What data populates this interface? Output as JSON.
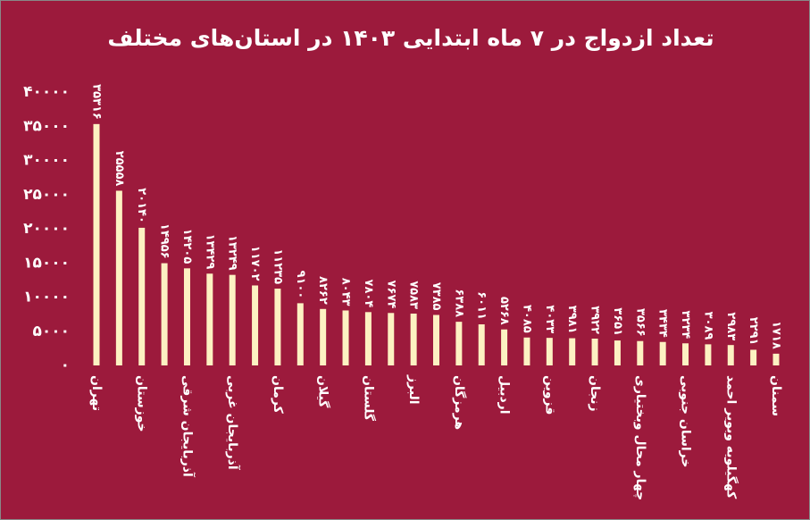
{
  "chart_data": {
    "type": "bar",
    "title": "تعداد ازدواج در ۷ ماه ابتدایی ۱۴۰۳ در استان‌های مختلف",
    "categories": [
      "تهران",
      null,
      "خوزستان",
      null,
      "آذربایجان شرقی",
      null,
      "آذربایجان غربی",
      null,
      "کرمان",
      null,
      "گیلان",
      null,
      "گلستان",
      null,
      "البرز",
      null,
      "هرمزگان",
      null,
      "اردبیل",
      null,
      "قزوین",
      null,
      "زنجان",
      null,
      "چهار محال وبختیاری",
      null,
      "خراسان جنوبی",
      null,
      "کهگیلویه وبویر احمد",
      null,
      "سمنان"
    ],
    "values": [
      35316,
      25558,
      20140,
      14956,
      14205,
      13429,
      13249,
      11702,
      11235,
      9100,
      8262,
      8043,
      7804,
      7674,
      7583,
      7385,
      6388,
      6011,
      5268,
      4085,
      4033,
      3981,
      3922,
      3651,
      3566,
      3434,
      3234,
      3089,
      2983,
      2291,
      1718
    ],
    "value_labels": [
      "۳۵۳۱۶",
      "۲۵۵۵۸",
      "۲۰۱۴۰",
      "۱۴۹۵۶",
      "۱۴۲۰۵",
      "۱۳۴۲۹",
      "۱۳۲۴۹",
      "۱۱۷۰۲",
      "۱۱۲۳۵",
      "۹۱۰۰",
      "۸۲۶۲",
      "۸۰۴۳",
      "۷۸۰۴",
      "۷۶۷۴",
      "۷۵۸۳",
      "۷۳۸۵",
      "۶۳۸۸",
      "۶۰۱۱",
      "۵۲۶۸",
      "۴۰۸۵",
      "۴۰۳۳",
      "۳۹۸۱",
      "۳۹۲۲",
      "۳۶۵۱",
      "۳۵۶۶",
      "۳۴۳۴",
      "۳۲۳۴",
      "۳۰۸۹",
      "۲۹۸۳",
      "۲۲۹۱",
      "۱۷۱۸"
    ],
    "color": "#fdf1c2",
    "ylim": [
      0,
      40000
    ],
    "yticks": [
      {
        "value": 0,
        "label": "۰"
      },
      {
        "value": 5000,
        "label": "۵۰۰۰"
      },
      {
        "value": 10000,
        "label": "۱۰۰۰۰"
      },
      {
        "value": 15000,
        "label": "۱۵۰۰۰"
      },
      {
        "value": 20000,
        "label": "۲۰۰۰۰"
      },
      {
        "value": 25000,
        "label": "۲۵۰۰۰"
      },
      {
        "value": 30000,
        "label": "۳۰۰۰۰"
      },
      {
        "value": 35000,
        "label": "۳۵۰۰۰"
      },
      {
        "value": 40000,
        "label": "۴۰۰۰۰"
      }
    ],
    "grid": false
  }
}
